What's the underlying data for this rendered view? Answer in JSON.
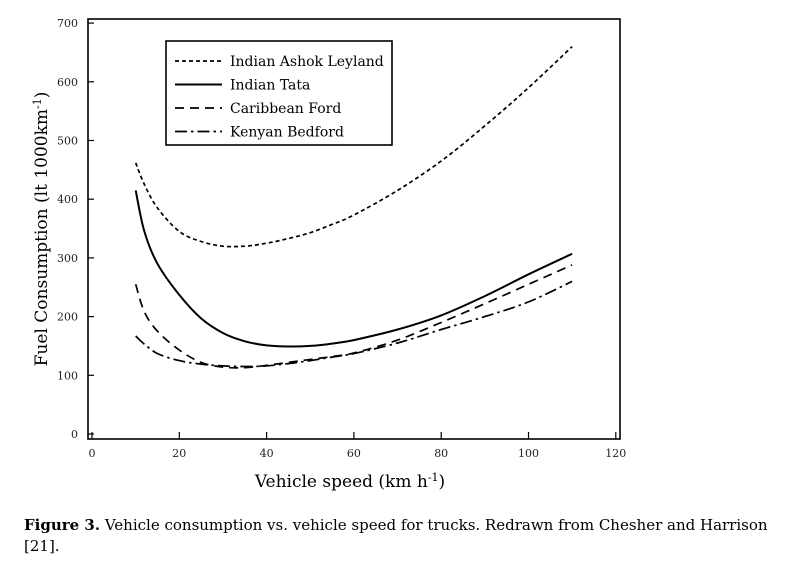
{
  "chart_data": {
    "type": "line",
    "xlabel": "Vehicle speed (km h",
    "xlabel_sup": "-1",
    "xlabel_end": ")",
    "ylabel": "Fuel Consumption (lt 1000km",
    "ylabel_sup": "-1",
    "ylabel_end": ")",
    "xlim": [
      0,
      120
    ],
    "ylim": [
      0,
      700
    ],
    "xticks": [
      0,
      20,
      40,
      60,
      80,
      100,
      120
    ],
    "yticks": [
      0,
      100,
      200,
      300,
      400,
      500,
      600,
      700
    ],
    "grid": false,
    "legend_position": "top-left",
    "series": [
      {
        "name": "Indian Ashok Leyland",
        "style": "dashed-short",
        "x": [
          10,
          12,
          15,
          20,
          25,
          30,
          35,
          40,
          45,
          50,
          55,
          60,
          70,
          80,
          90,
          100,
          110
        ],
        "y": [
          462,
          425,
          385,
          345,
          328,
          320,
          320,
          325,
          333,
          343,
          357,
          373,
          415,
          465,
          525,
          590,
          660
        ]
      },
      {
        "name": "Indian Tata",
        "style": "solid",
        "x": [
          10,
          12,
          15,
          20,
          25,
          30,
          35,
          40,
          45,
          50,
          55,
          60,
          70,
          80,
          90,
          100,
          110
        ],
        "y": [
          415,
          345,
          290,
          237,
          197,
          172,
          158,
          151,
          149,
          150,
          154,
          160,
          178,
          202,
          235,
          272,
          307
        ]
      },
      {
        "name": "Caribbean Ford",
        "style": "dashed-long",
        "x": [
          10,
          12,
          15,
          20,
          25,
          30,
          35,
          40,
          45,
          50,
          55,
          60,
          70,
          80,
          90,
          100,
          110
        ],
        "y": [
          255,
          208,
          175,
          143,
          122,
          114,
          113,
          117,
          122,
          127,
          132,
          138,
          160,
          190,
          222,
          255,
          288
        ]
      },
      {
        "name": "Kenyan Bedford",
        "style": "dash-dot",
        "x": [
          10,
          12,
          15,
          20,
          25,
          30,
          35,
          40,
          45,
          50,
          55,
          60,
          70,
          80,
          90,
          100,
          110
        ],
        "y": [
          167,
          153,
          137,
          125,
          119,
          116,
          115,
          116,
          120,
          125,
          131,
          137,
          155,
          178,
          200,
          225,
          260
        ]
      }
    ]
  },
  "caption": {
    "label": "Figure 3.",
    "text": " Vehicle consumption vs. vehicle speed for trucks. Redrawn from Chesher and Harrison [21]."
  }
}
